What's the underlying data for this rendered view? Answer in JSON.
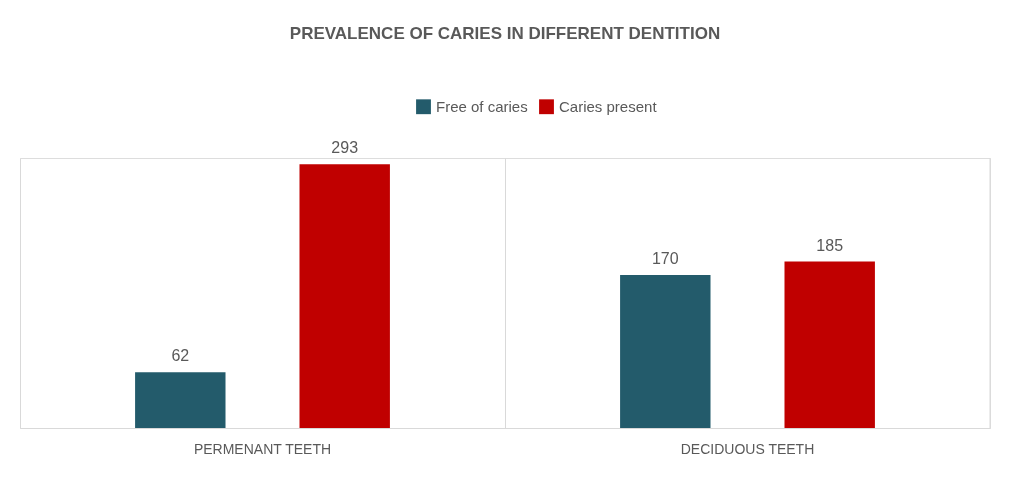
{
  "chart_data": {
    "type": "bar",
    "title": "PREVALENCE OF CARIES IN DIFFERENT DENTITION",
    "categories": [
      "PERMENANT TEETH",
      "DECIDUOUS TEETH"
    ],
    "series": [
      {
        "name": "Free of caries",
        "color": "#235b6b",
        "values": [
          62,
          170
        ]
      },
      {
        "name": "Caries present",
        "color": "#c00000",
        "values": [
          293,
          185
        ]
      }
    ],
    "data_labels": true,
    "legend": "top",
    "grid": "x"
  }
}
